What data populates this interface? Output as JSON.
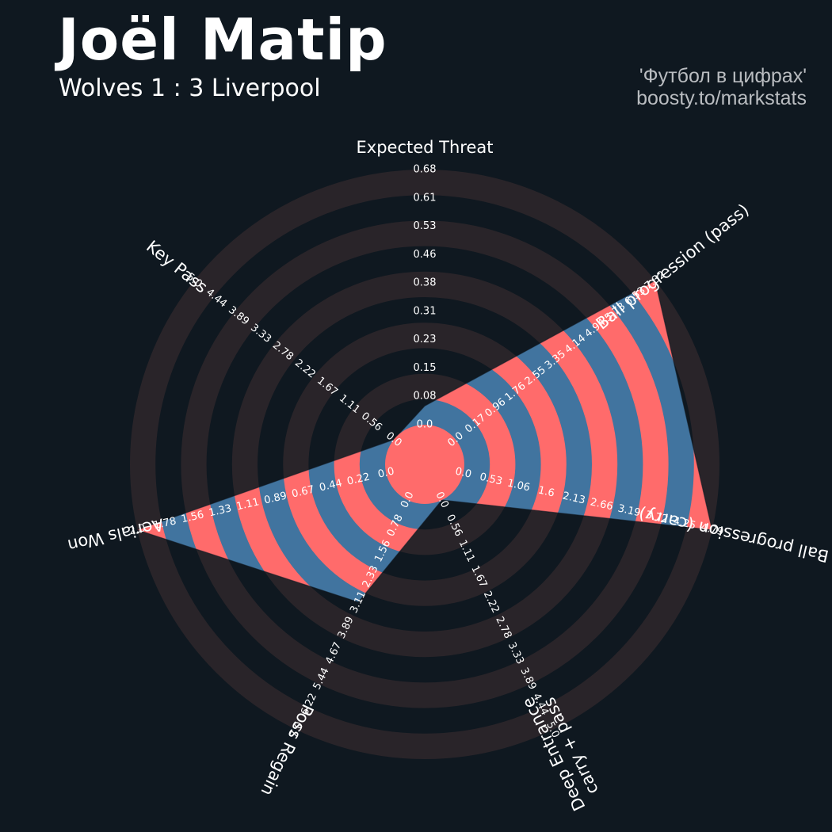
{
  "header": {
    "title": "Joël Matip",
    "subtitle": "Wolves 1 : 3 Liverpool"
  },
  "credit": {
    "line1": "'Футбол в цифрах'",
    "line2": "boosty.to/markstats"
  },
  "colors": {
    "background": "#0f1820",
    "ring_dark": "#292429",
    "value_blue": "#41749f",
    "value_red": "#ff6b6b",
    "text": "#ffffff"
  },
  "chart_data": {
    "type": "radar",
    "style": "pizza-radar with alternating concentric rings",
    "start_angle_deg": 90,
    "direction": "clockwise",
    "rings": 10,
    "parameters": [
      {
        "label": "Expected Threat",
        "value": 0.05,
        "range": [
          0,
          0.68
        ],
        "ticks": [
          "0.0",
          "0.08",
          "0.15",
          "0.23",
          "0.31",
          "0.38",
          "0.46",
          "0.53",
          "0.61",
          "0.68"
        ]
      },
      {
        "label": "Ball progression (pass)",
        "value": 7.32,
        "range": [
          0,
          7.32
        ],
        "ticks": [
          "0.0",
          "0.17",
          "0.96",
          "1.76",
          "2.55",
          "3.35",
          "4.14",
          "4.94",
          "5.73",
          "6.53",
          "7.32"
        ]
      },
      {
        "label": "Ball progression (carry)",
        "value": 4.79,
        "range": [
          0,
          4.79
        ],
        "ticks": [
          "0.0",
          "0.53",
          "1.06",
          "1.6",
          "2.13",
          "2.66",
          "3.19",
          "3.72",
          "4.25",
          "4.79"
        ]
      },
      {
        "label": "Deep Entrance\ncarry + pass",
        "value": 0.0,
        "range": [
          0,
          5.0
        ],
        "ticks": [
          "0.0",
          "0.56",
          "1.11",
          "1.67",
          "2.22",
          "2.78",
          "3.33",
          "3.89",
          "4.44",
          "5.0"
        ]
      },
      {
        "label": "Poss Regain",
        "value": 3.11,
        "range": [
          0,
          7.0
        ],
        "ticks": [
          "0.0",
          "0.78",
          "1.56",
          "2.33",
          "3.11",
          "3.89",
          "4.67",
          "5.44",
          "6.22",
          "7.0"
        ]
      },
      {
        "label": "Aerials Won",
        "value": 2.0,
        "range": [
          0,
          2.0
        ],
        "ticks": [
          "0.0",
          "0.22",
          "0.44",
          "0.67",
          "0.89",
          "1.11",
          "1.33",
          "1.56",
          "1.78",
          "2.0"
        ]
      },
      {
        "label": "Key Pass",
        "value": 0.0,
        "range": [
          0,
          5.0
        ],
        "ticks": [
          "0.0",
          "0.56",
          "1.11",
          "1.67",
          "2.22",
          "2.78",
          "3.33",
          "3.89",
          "4.44",
          "5.0"
        ]
      }
    ]
  }
}
